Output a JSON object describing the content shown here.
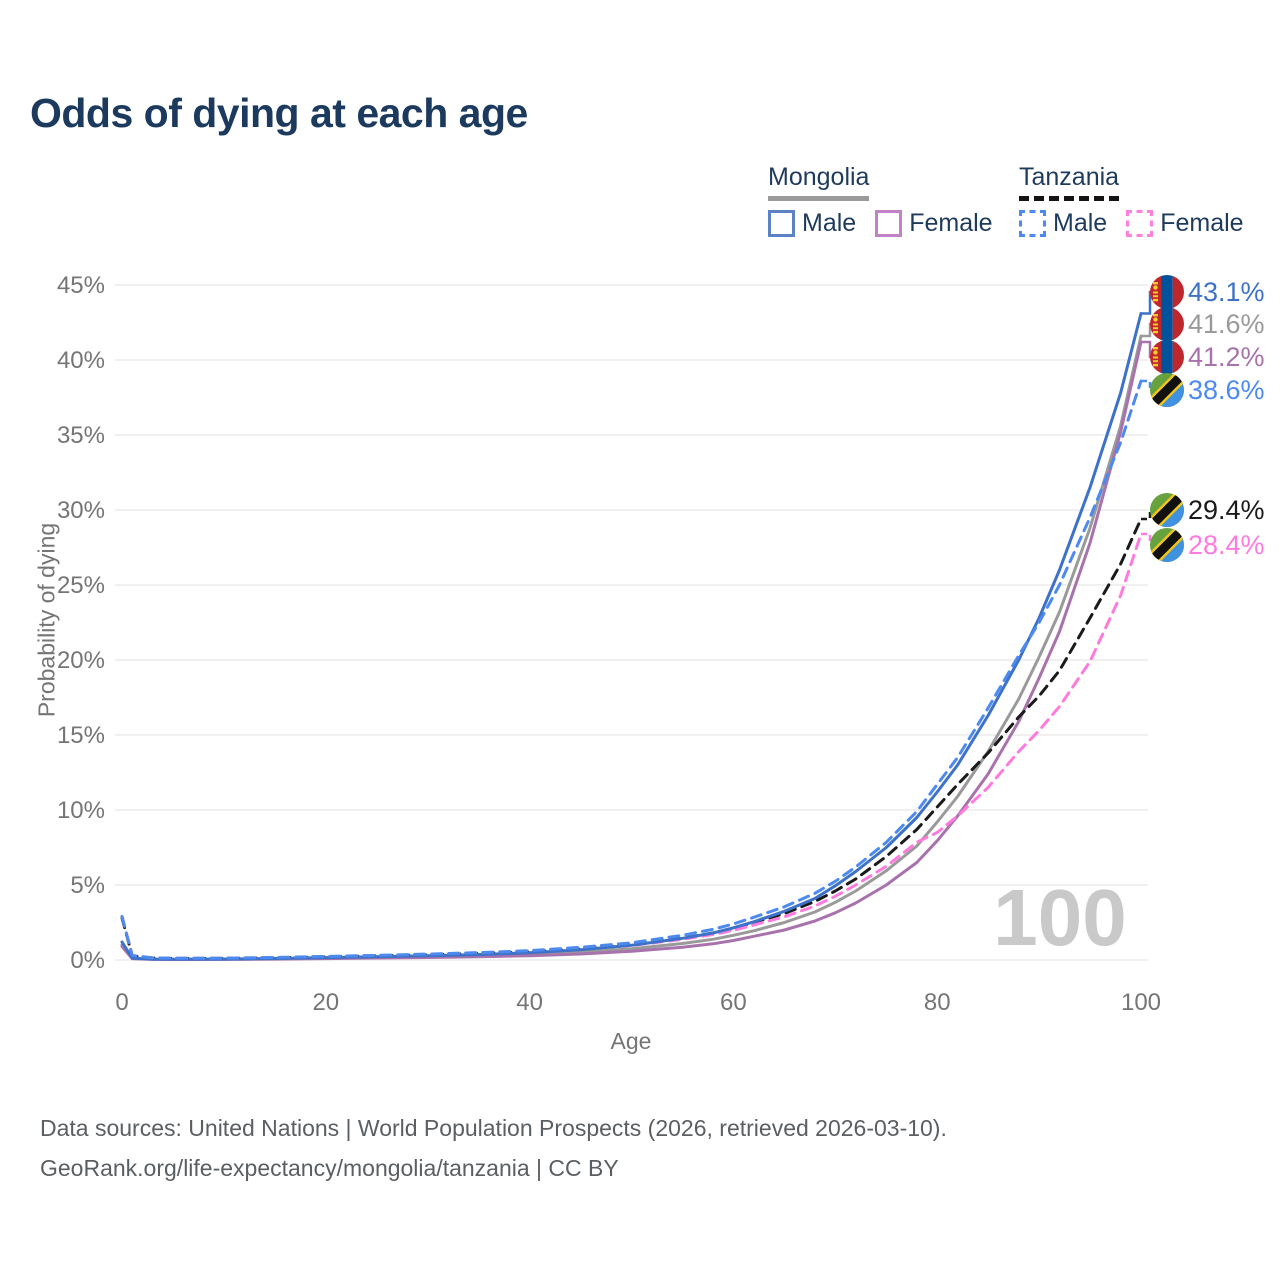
{
  "title": "Odds of dying at each age",
  "legend": {
    "groups": [
      {
        "id": "mongolia",
        "label": "Mongolia",
        "underline_style": "solid",
        "underline_color": "#9a9a9a",
        "items": [
          {
            "id": "mongolia-male",
            "label": "Male",
            "swatch_color": "#5b82c4",
            "swatch_style": "solid"
          },
          {
            "id": "mongolia-female",
            "label": "Female",
            "swatch_color": "#c183c5",
            "swatch_style": "solid"
          }
        ]
      },
      {
        "id": "tanzania",
        "label": "Tanzania",
        "underline_style": "dashed",
        "underline_color": "#141414",
        "items": [
          {
            "id": "tanzania-male",
            "label": "Male",
            "swatch_color": "#4d8af0",
            "swatch_style": "dashed"
          },
          {
            "id": "tanzania-female",
            "label": "Female",
            "swatch_color": "#ff80df",
            "swatch_style": "dashed"
          }
        ]
      }
    ]
  },
  "chart_data": {
    "type": "line",
    "title": "Odds of dying at each age",
    "xlabel": "Age",
    "ylabel": "Probability of dying",
    "xlim": [
      0,
      100
    ],
    "ylim": [
      0,
      45
    ],
    "xticks": [
      0,
      20,
      40,
      60,
      80,
      100
    ],
    "yticks": [
      0,
      5,
      10,
      15,
      20,
      25,
      30,
      35,
      40,
      45
    ],
    "ytick_suffix": "%",
    "grid": "horizontal",
    "legend_position": "top-right",
    "watermark": "100",
    "series": [
      {
        "id": "mongolia-both",
        "name": "Mongolia — Both sexes",
        "country": "Mongolia",
        "sex": "Both",
        "style": "solid",
        "color": "#9a9a9a",
        "flag": "mongolia",
        "end_label": "41.6%",
        "end_value": 41.6,
        "points": [
          [
            0,
            1.0
          ],
          [
            1,
            0.1
          ],
          [
            3,
            0.05
          ],
          [
            5,
            0.04
          ],
          [
            10,
            0.05
          ],
          [
            15,
            0.08
          ],
          [
            20,
            0.12
          ],
          [
            25,
            0.17
          ],
          [
            30,
            0.22
          ],
          [
            35,
            0.28
          ],
          [
            40,
            0.37
          ],
          [
            45,
            0.52
          ],
          [
            50,
            0.75
          ],
          [
            55,
            1.1
          ],
          [
            58,
            1.38
          ],
          [
            60,
            1.65
          ],
          [
            62,
            1.95
          ],
          [
            65,
            2.5
          ],
          [
            68,
            3.2
          ],
          [
            70,
            3.85
          ],
          [
            72,
            4.6
          ],
          [
            75,
            5.95
          ],
          [
            78,
            7.6
          ],
          [
            80,
            9.2
          ],
          [
            82,
            10.9
          ],
          [
            85,
            13.9
          ],
          [
            88,
            17.4
          ],
          [
            90,
            20.2
          ],
          [
            92,
            23.2
          ],
          [
            95,
            28.8
          ],
          [
            98,
            35.6
          ],
          [
            100,
            41.6
          ]
        ]
      },
      {
        "id": "mongolia-female",
        "name": "Mongolia — Female",
        "country": "Mongolia",
        "sex": "Female",
        "style": "solid",
        "color": "#a873ad",
        "flag": "mongolia",
        "end_label": "41.2%",
        "end_value": 41.2,
        "points": [
          [
            0,
            0.9
          ],
          [
            1,
            0.09
          ],
          [
            3,
            0.04
          ],
          [
            5,
            0.03
          ],
          [
            10,
            0.04
          ],
          [
            15,
            0.06
          ],
          [
            20,
            0.09
          ],
          [
            25,
            0.13
          ],
          [
            30,
            0.17
          ],
          [
            35,
            0.22
          ],
          [
            40,
            0.28
          ],
          [
            45,
            0.4
          ],
          [
            50,
            0.58
          ],
          [
            55,
            0.85
          ],
          [
            58,
            1.08
          ],
          [
            60,
            1.3
          ],
          [
            62,
            1.58
          ],
          [
            65,
            2.0
          ],
          [
            68,
            2.6
          ],
          [
            70,
            3.15
          ],
          [
            72,
            3.8
          ],
          [
            75,
            5.0
          ],
          [
            78,
            6.5
          ],
          [
            80,
            7.95
          ],
          [
            82,
            9.6
          ],
          [
            85,
            12.4
          ],
          [
            88,
            15.9
          ],
          [
            90,
            18.8
          ],
          [
            92,
            21.9
          ],
          [
            95,
            27.8
          ],
          [
            98,
            35.2
          ],
          [
            100,
            41.2
          ]
        ]
      },
      {
        "id": "tanzania-both",
        "name": "Tanzania — Both sexes",
        "country": "Tanzania",
        "sex": "Both",
        "style": "dashed",
        "color": "#1a1a1a",
        "flag": "tanzania",
        "end_label": "29.4%",
        "end_value": 29.4,
        "points": [
          [
            0,
            2.8
          ],
          [
            1,
            0.28
          ],
          [
            3,
            0.13
          ],
          [
            5,
            0.11
          ],
          [
            10,
            0.11
          ],
          [
            15,
            0.15
          ],
          [
            20,
            0.21
          ],
          [
            25,
            0.28
          ],
          [
            30,
            0.35
          ],
          [
            35,
            0.44
          ],
          [
            40,
            0.55
          ],
          [
            45,
            0.74
          ],
          [
            50,
            1.0
          ],
          [
            55,
            1.45
          ],
          [
            58,
            1.8
          ],
          [
            60,
            2.1
          ],
          [
            62,
            2.5
          ],
          [
            65,
            3.1
          ],
          [
            68,
            3.9
          ],
          [
            70,
            4.6
          ],
          [
            72,
            5.4
          ],
          [
            75,
            6.9
          ],
          [
            78,
            8.7
          ],
          [
            80,
            10.2
          ],
          [
            82,
            11.7
          ],
          [
            85,
            13.8
          ],
          [
            88,
            16.2
          ],
          [
            90,
            17.6
          ],
          [
            92,
            19.3
          ],
          [
            95,
            22.8
          ],
          [
            98,
            26.4
          ],
          [
            100,
            29.4
          ]
        ]
      },
      {
        "id": "tanzania-female",
        "name": "Tanzania — Female",
        "country": "Tanzania",
        "sex": "Female",
        "style": "dashed",
        "color": "#ff7ade",
        "flag": "tanzania",
        "end_label": "28.4%",
        "end_value": 28.4,
        "points": [
          [
            0,
            2.9
          ],
          [
            1,
            0.3
          ],
          [
            3,
            0.14
          ],
          [
            5,
            0.12
          ],
          [
            10,
            0.12
          ],
          [
            15,
            0.16
          ],
          [
            20,
            0.22
          ],
          [
            25,
            0.29
          ],
          [
            30,
            0.36
          ],
          [
            35,
            0.45
          ],
          [
            40,
            0.56
          ],
          [
            45,
            0.72
          ],
          [
            50,
            0.97
          ],
          [
            55,
            1.38
          ],
          [
            58,
            1.7
          ],
          [
            60,
            1.98
          ],
          [
            62,
            2.33
          ],
          [
            65,
            2.88
          ],
          [
            68,
            3.6
          ],
          [
            70,
            4.25
          ],
          [
            72,
            5.0
          ],
          [
            75,
            6.25
          ],
          [
            78,
            7.85
          ],
          [
            80,
            8.5
          ],
          [
            82,
            9.6
          ],
          [
            85,
            11.5
          ],
          [
            88,
            13.9
          ],
          [
            90,
            15.3
          ],
          [
            92,
            16.9
          ],
          [
            95,
            19.9
          ],
          [
            98,
            24.3
          ],
          [
            100,
            28.4
          ]
        ]
      },
      {
        "id": "mongolia-male",
        "name": "Mongolia — Male",
        "country": "Mongolia",
        "sex": "Male",
        "style": "solid",
        "color": "#3d72c8",
        "flag": "mongolia",
        "end_label": "43.1%",
        "end_value": 43.1,
        "points": [
          [
            0,
            1.2
          ],
          [
            1,
            0.12
          ],
          [
            3,
            0.06
          ],
          [
            5,
            0.05
          ],
          [
            10,
            0.06
          ],
          [
            15,
            0.1
          ],
          [
            20,
            0.16
          ],
          [
            25,
            0.22
          ],
          [
            30,
            0.28
          ],
          [
            35,
            0.36
          ],
          [
            40,
            0.48
          ],
          [
            45,
            0.68
          ],
          [
            50,
            0.98
          ],
          [
            55,
            1.45
          ],
          [
            58,
            1.8
          ],
          [
            60,
            2.15
          ],
          [
            62,
            2.55
          ],
          [
            65,
            3.25
          ],
          [
            68,
            4.1
          ],
          [
            70,
            4.95
          ],
          [
            72,
            5.9
          ],
          [
            75,
            7.5
          ],
          [
            78,
            9.5
          ],
          [
            80,
            11.2
          ],
          [
            82,
            13.0
          ],
          [
            85,
            16.3
          ],
          [
            88,
            20.0
          ],
          [
            90,
            22.8
          ],
          [
            92,
            26.0
          ],
          [
            95,
            31.5
          ],
          [
            98,
            37.8
          ],
          [
            100,
            43.1
          ]
        ]
      },
      {
        "id": "tanzania-male",
        "name": "Tanzania — Male",
        "country": "Tanzania",
        "sex": "Male",
        "style": "dashed",
        "color": "#4d8af0",
        "flag": "tanzania",
        "end_label": "38.6%",
        "end_value": 38.6,
        "points": [
          [
            0,
            2.9
          ],
          [
            1,
            0.3
          ],
          [
            3,
            0.14
          ],
          [
            5,
            0.12
          ],
          [
            10,
            0.12
          ],
          [
            15,
            0.17
          ],
          [
            20,
            0.24
          ],
          [
            25,
            0.31
          ],
          [
            30,
            0.39
          ],
          [
            35,
            0.49
          ],
          [
            40,
            0.62
          ],
          [
            45,
            0.85
          ],
          [
            50,
            1.15
          ],
          [
            55,
            1.65
          ],
          [
            58,
            2.05
          ],
          [
            60,
            2.4
          ],
          [
            62,
            2.85
          ],
          [
            65,
            3.55
          ],
          [
            68,
            4.45
          ],
          [
            70,
            5.25
          ],
          [
            72,
            6.2
          ],
          [
            75,
            7.85
          ],
          [
            78,
            9.9
          ],
          [
            80,
            11.7
          ],
          [
            82,
            13.5
          ],
          [
            85,
            16.8
          ],
          [
            88,
            20.3
          ],
          [
            90,
            22.5
          ],
          [
            92,
            25.0
          ],
          [
            95,
            29.5
          ],
          [
            98,
            34.5
          ],
          [
            100,
            38.6
          ]
        ]
      }
    ]
  },
  "footer": {
    "line1": "Data sources: United Nations | World Population Prospects (2026, retrieved 2026-03-10).",
    "line2": "GeoRank.org/life-expectancy/mongolia/tanzania | CC BY"
  }
}
